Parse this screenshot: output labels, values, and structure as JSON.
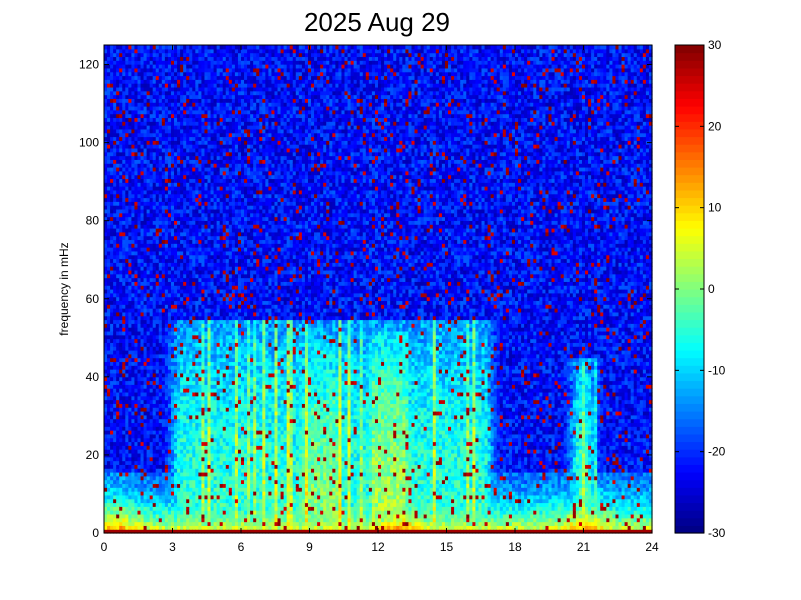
{
  "chart_data": {
    "type": "heatmap",
    "title": "2025 Aug 29",
    "ylabel": "frequency in mHz",
    "xlabel": "",
    "xlim": [
      0,
      24
    ],
    "ylim": [
      0,
      125
    ],
    "xticks": [
      0,
      3,
      6,
      9,
      12,
      15,
      18,
      21,
      24
    ],
    "yticks": [
      0,
      20,
      40,
      60,
      80,
      100,
      120
    ],
    "colorbar": {
      "colormap": "jet",
      "range": [
        -30,
        30
      ],
      "ticks": [
        30,
        20,
        10,
        0,
        -10,
        -20,
        -30
      ]
    },
    "structure": {
      "background_level_db": -22,
      "low_freq_band": {
        "freq_range": [
          0,
          10
        ],
        "level_db": 8,
        "peak_hours": [
          0.5,
          13,
          21
        ]
      },
      "broadband_activity": [
        {
          "hours": [
            3,
            17
          ],
          "freq_max": 55,
          "level_db": -5
        },
        {
          "hours": [
            8.5,
            10.5
          ],
          "freq_max": 50,
          "level_db": 0
        },
        {
          "hours": [
            11.5,
            13.5
          ],
          "freq_max": 52,
          "level_db": 2
        },
        {
          "hours": [
            20.5,
            21.5
          ],
          "freq_max": 45,
          "level_db": -3
        }
      ]
    }
  }
}
